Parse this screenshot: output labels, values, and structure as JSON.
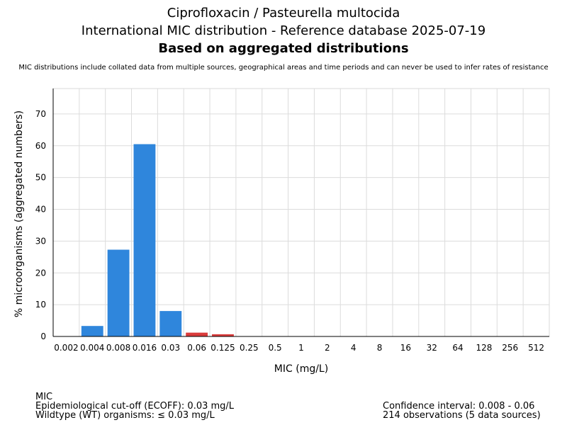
{
  "header": {
    "title_line1": "Ciprofloxacin / Pasteurella multocida",
    "title_line2": "International MIC distribution - Reference database 2025-07-19",
    "title_line3": "Based on aggregated distributions",
    "subtitle": "MIC distributions include collated data from multiple sources, geographical areas and time periods and can never be used to infer rates of resistance"
  },
  "chart_data": {
    "type": "bar",
    "xlabel": "MIC (mg/L)",
    "ylabel": "% microorganisms (aggregated numbers)",
    "categories": [
      "0.002",
      "0.004",
      "0.008",
      "0.016",
      "0.03",
      "0.06",
      "0.125",
      "0.25",
      "0.5",
      "1",
      "2",
      "4",
      "8",
      "16",
      "32",
      "64",
      "128",
      "256",
      "512"
    ],
    "values": [
      0,
      3.3,
      27.3,
      60.5,
      8.0,
      1.2,
      0.7,
      0,
      0,
      0,
      0,
      0,
      0,
      0,
      0,
      0,
      0,
      0,
      0
    ],
    "ylim": [
      0,
      78
    ],
    "yticks": [
      0,
      10,
      20,
      30,
      40,
      50,
      60,
      70
    ],
    "grid": true,
    "colors": {
      "wildtype": "#2f86dc",
      "non_wildtype": "#d93b3b"
    },
    "wildtype_max_index": 4
  },
  "footer": {
    "left_line1": "MIC",
    "left_line2": "Epidemiological cut-off (ECOFF): 0.03 mg/L",
    "left_line3": "Wildtype (WT) organisms: ≤ 0.03 mg/L",
    "right_line1": "Confidence interval: 0.008 - 0.06",
    "right_line2": "214 observations (5 data sources)"
  }
}
